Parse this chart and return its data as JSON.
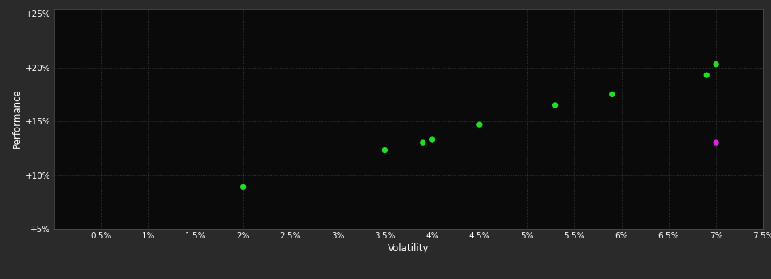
{
  "background_color": "#2a2a2a",
  "plot_bg_color": "#0a0a0a",
  "grid_color": "#404040",
  "text_color": "#ffffff",
  "xlabel": "Volatility",
  "ylabel": "Performance",
  "xlim": [
    0.0,
    0.075
  ],
  "ylim": [
    0.05,
    0.255
  ],
  "xticks": [
    0.005,
    0.01,
    0.015,
    0.02,
    0.025,
    0.03,
    0.035,
    0.04,
    0.045,
    0.05,
    0.055,
    0.06,
    0.065,
    0.07,
    0.075
  ],
  "xtick_labels": [
    "0.5%",
    "1%",
    "1.5%",
    "2%",
    "2.5%",
    "3%",
    "3.5%",
    "4%",
    "4.5%",
    "5%",
    "5.5%",
    "6%",
    "6.5%",
    "7%",
    "7.5%"
  ],
  "yticks": [
    0.05,
    0.1,
    0.15,
    0.2,
    0.25
  ],
  "ytick_labels": [
    "+5%",
    "+10%",
    "+15%",
    "+20%",
    "+25%"
  ],
  "green_points": [
    [
      0.02,
      0.089
    ],
    [
      0.035,
      0.123
    ],
    [
      0.039,
      0.13
    ],
    [
      0.04,
      0.133
    ],
    [
      0.045,
      0.147
    ],
    [
      0.053,
      0.165
    ],
    [
      0.059,
      0.175
    ],
    [
      0.069,
      0.193
    ],
    [
      0.07,
      0.203
    ]
  ],
  "magenta_points": [
    [
      0.07,
      0.13
    ]
  ],
  "green_color": "#22dd22",
  "magenta_color": "#dd22dd",
  "marker_size": 28,
  "font_size_ticks": 7.5,
  "font_size_axis_label": 8.5,
  "ylabel_rotation": 90
}
